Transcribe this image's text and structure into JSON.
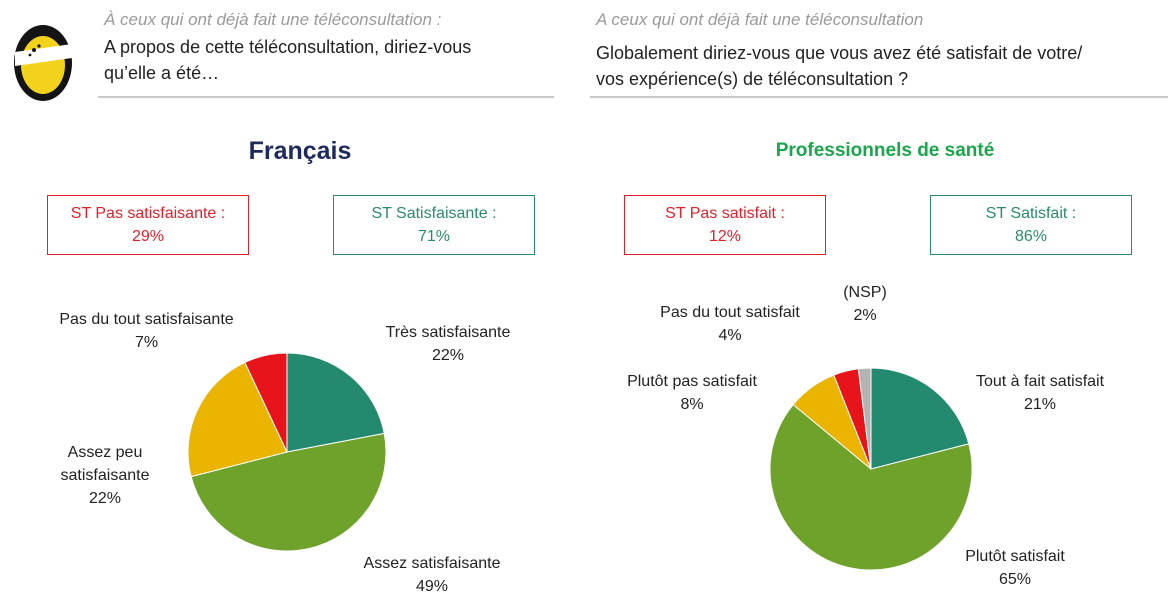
{
  "left": {
    "question_sub": "À ceux qui ont déjà fait une téléconsultation :",
    "question_line1": "A propos de cette téléconsultation, diriez-vous",
    "question_line2": "qu’elle a été…",
    "title": "Français",
    "title_color": "#1f2a5c",
    "st_negative": {
      "label": "ST Pas satisfaisante :",
      "value": "29%"
    },
    "st_positive": {
      "label": "ST Satisfaisante :",
      "value": "71%"
    }
  },
  "right": {
    "question_sub": "A ceux qui ont déjà fait une téléconsultation",
    "question_line1": "Globalement diriez-vous que vous avez été satisfait de votre/",
    "question_line2": "vos expérience(s) de téléconsultation ?",
    "title": "Professionnels de santé",
    "title_color": "#1aa64a",
    "st_negative": {
      "label": "ST Pas satisfait :",
      "value": "12%"
    },
    "st_positive": {
      "label": "ST Satisfait :",
      "value": "86%"
    }
  },
  "chart_data": [
    {
      "type": "pie",
      "title": "Français",
      "slices": [
        {
          "label": "Très satisfaisante",
          "value": 22,
          "display": "22%",
          "color": "#248a6f"
        },
        {
          "label": "Assez satisfaisante",
          "value": 49,
          "display": "49%",
          "color": "#6fa22b"
        },
        {
          "label": "Assez peu satisfaisante",
          "label_lines": [
            "Assez peu",
            "satisfaisante"
          ],
          "value": 22,
          "display": "22%",
          "color": "#ebb400"
        },
        {
          "label": "Pas du tout satisfaisante",
          "value": 7,
          "display": "7%",
          "color": "#e8141b"
        }
      ]
    },
    {
      "type": "pie",
      "title": "Professionnels de santé",
      "slices": [
        {
          "label": "Tout à fait satisfait",
          "value": 21,
          "display": "21%",
          "color": "#248a6f"
        },
        {
          "label": "Plutôt satisfait",
          "value": 65,
          "display": "65%",
          "color": "#6fa22b"
        },
        {
          "label": "Plutôt pas satisfait",
          "value": 8,
          "display": "8%",
          "color": "#ebb400"
        },
        {
          "label": "Pas du tout satisfait",
          "value": 4,
          "display": "4%",
          "color": "#e8141b"
        },
        {
          "label": "(NSP)",
          "value": 2,
          "display": "2%",
          "color": "#b3b3b3"
        }
      ]
    }
  ]
}
